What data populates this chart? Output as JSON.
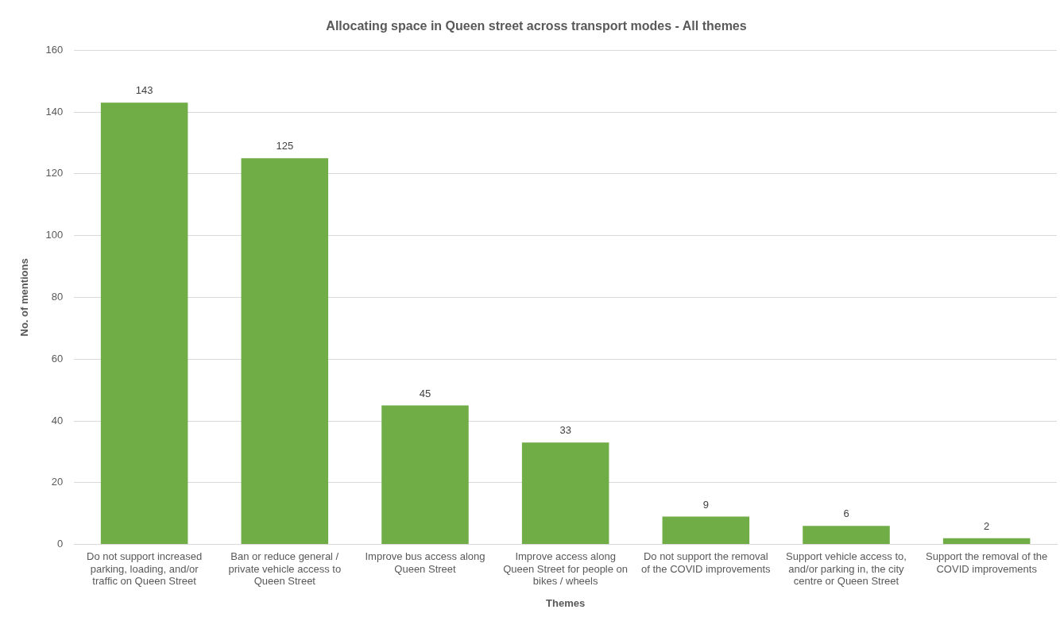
{
  "chart_data": {
    "type": "bar",
    "title": "Allocating space in Queen street across transport modes - All themes",
    "xlabel": "Themes",
    "ylabel": "No. of mentions",
    "categories": [
      "Do not support increased parking, loading, and/or traffic on Queen Street",
      "Ban or reduce general / private vehicle access to Queen Street",
      "Improve bus access along Queen Street",
      "Improve access along Queen Street for people on bikes / wheels",
      "Do not support the removal of the COVID improvements",
      "Support vehicle access to, and/or parking in, the city centre or Queen Street",
      "Support the removal of the COVID improvements"
    ],
    "values": [
      143,
      125,
      45,
      33,
      9,
      6,
      2
    ],
    "color": "#70ad47",
    "ylim": [
      0,
      160
    ],
    "yticks": [
      0,
      20,
      40,
      60,
      80,
      100,
      120,
      140,
      160
    ],
    "grid": "y",
    "data_labels": true
  }
}
